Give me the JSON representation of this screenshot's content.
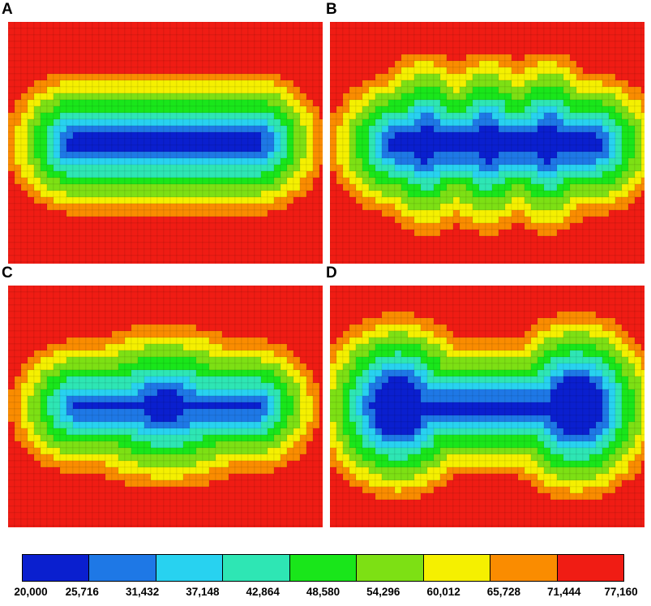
{
  "panels": [
    {
      "label": "A",
      "shape": "stadium"
    },
    {
      "label": "B",
      "shape": "three-lobed stadium"
    },
    {
      "label": "C",
      "shape": "ellipse"
    },
    {
      "label": "D",
      "shape": "dumbbell"
    }
  ],
  "legend": {
    "colors": [
      "#0a1fcf",
      "#1e78e6",
      "#28d2f0",
      "#2ee6b4",
      "#19e61a",
      "#7de014",
      "#f5f000",
      "#fa8c00",
      "#f01c14"
    ],
    "ticks": [
      "20,000",
      "25,716",
      "31,432",
      "37,148",
      "42,864",
      "48,580",
      "54,296",
      "60,012",
      "65,728",
      "71,444",
      "77,160"
    ]
  }
}
